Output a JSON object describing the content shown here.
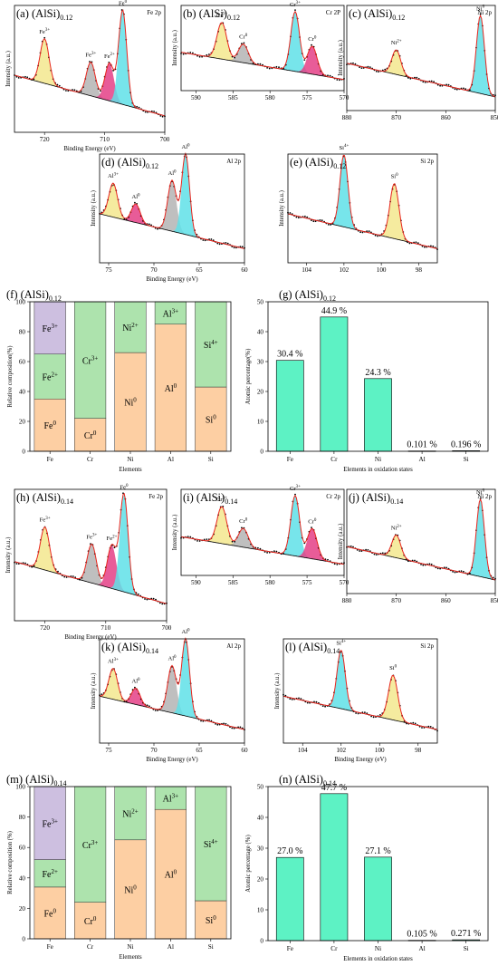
{
  "colors": {
    "yellow": "#f3e88e",
    "gray": "#b4b4b4",
    "magenta": "#e43f86",
    "cyan": "#5fe0e8",
    "purple": "#cdbfe0",
    "green": "#ade3ad",
    "orange": "#fdcfa3",
    "bar": "#5df2c4",
    "fit": "#e8261e"
  },
  "titles": {
    "a": {
      "pre": "(a) (AlSi)",
      "sub": "0.12"
    },
    "b": {
      "pre": "(b) (AlSi)",
      "sub": "0.12"
    },
    "c": {
      "pre": "(c) (AlSi)",
      "sub": "0.12"
    },
    "d": {
      "pre": "(d) (AlSi)",
      "sub": "0.12"
    },
    "e": {
      "pre": "(e) (AlSi)",
      "sub": "0.12"
    },
    "f": {
      "pre": "(f) (AlSi)",
      "sub": "0.12"
    },
    "g": {
      "pre": "(g) (AlSi)",
      "sub": "0.12"
    },
    "h": {
      "pre": "(h) (AlSi)",
      "sub": "0.14"
    },
    "i": {
      "pre": "(i) (AlSi)",
      "sub": "0.14"
    },
    "j": {
      "pre": "(j) (AlSi)",
      "sub": "0.14"
    },
    "k": {
      "pre": "(k) (AlSi)",
      "sub": "0.14"
    },
    "l": {
      "pre": "(l) (AlSi)",
      "sub": "0.14"
    },
    "m": {
      "pre": "(m) (AlSi)",
      "sub": "0.14"
    },
    "n": {
      "pre": "(n) (AlSi)",
      "sub": "0.14"
    }
  },
  "chart_data": [
    {
      "id": "a",
      "type": "line",
      "corner_tag": "Fe 2p",
      "xlabel": "Binding Energy (eV)",
      "ylabel": "Intensity (a.u.)",
      "xlim": [
        725,
        700
      ],
      "ticks": [
        "720",
        "710",
        "700"
      ],
      "peaks": [
        {
          "label": "Fe3+",
          "position": 720.0,
          "height": 0.45,
          "color": "yellow"
        },
        {
          "label": "Fe3+",
          "position": 712.3,
          "height": 0.34,
          "color": "gray"
        },
        {
          "label": "Fe2+",
          "position": 709.2,
          "height": 0.38,
          "color": "magenta"
        },
        {
          "label": "Fe0",
          "position": 707.0,
          "height": 0.95,
          "color": "cyan"
        }
      ]
    },
    {
      "id": "b",
      "type": "line",
      "corner_tag": "Cr 2P",
      "xlabel": "",
      "ylabel": "Intensity (a.u.)",
      "xlim": [
        592,
        570
      ],
      "ticks": [
        "590",
        "585",
        "580",
        "575",
        "570"
      ],
      "peaks": [
        {
          "label": "Cr3+",
          "position": 586.5,
          "height": 0.55,
          "color": "yellow"
        },
        {
          "label": "Cr0",
          "position": 583.6,
          "height": 0.28,
          "color": "gray"
        },
        {
          "label": "Cr3+",
          "position": 576.6,
          "height": 0.9,
          "color": "cyan"
        },
        {
          "label": "Cr0",
          "position": 574.3,
          "height": 0.42,
          "color": "magenta"
        }
      ]
    },
    {
      "id": "c",
      "type": "line",
      "corner_tag": "Ni 2p",
      "xlabel": "",
      "ylabel": "Intensity (a.u.)",
      "xlim": [
        880,
        850
      ],
      "ticks": [
        "880",
        "870",
        "860",
        "850"
      ],
      "peaks": [
        {
          "label": "Ni2+",
          "position": 870.0,
          "height": 0.3,
          "color": "yellow"
        },
        {
          "label": "Ni0",
          "position": 853.0,
          "height": 0.95,
          "color": "cyan"
        }
      ]
    },
    {
      "id": "d",
      "type": "line",
      "corner_tag": "Al 2p",
      "xlabel": "Binding Energy (eV)",
      "ylabel": "Intensity (a.u.)",
      "xlim": [
        76,
        60
      ],
      "ticks": [
        "75",
        "70",
        "65",
        "60"
      ],
      "peaks": [
        {
          "label": "Al3+",
          "position": 74.5,
          "height": 0.4,
          "color": "yellow"
        },
        {
          "label": "Al0",
          "position": 72.0,
          "height": 0.22,
          "color": "magenta"
        },
        {
          "label": "Al0",
          "position": 68.0,
          "height": 0.6,
          "color": "gray"
        },
        {
          "label": "Al0",
          "position": 66.5,
          "height": 0.95,
          "color": "cyan"
        }
      ]
    },
    {
      "id": "e",
      "type": "line",
      "corner_tag": "Si 2p",
      "xlabel": "",
      "ylabel": "Intensity (a.u.)",
      "xlim": [
        105,
        97
      ],
      "ticks": [
        "104",
        "102",
        "100",
        "98"
      ],
      "peaks": [
        {
          "label": "Si4+",
          "position": 102.0,
          "height": 0.85,
          "color": "cyan"
        },
        {
          "label": "Si0",
          "position": 99.3,
          "height": 0.65,
          "color": "yellow"
        }
      ]
    },
    {
      "id": "f",
      "type": "bar",
      "stacked": true,
      "xlabel": "Elements",
      "ylabel": "Relative composition(%)",
      "ylim": [
        0,
        100
      ],
      "yticks": [
        "0",
        "20",
        "40",
        "60",
        "80",
        "100"
      ],
      "categories": [
        "Fe",
        "Cr",
        "Ni",
        "Al",
        "Si"
      ],
      "segments": [
        [
          {
            "label": "Fe0",
            "value": 35,
            "color": "orange"
          },
          {
            "label": "Fe2+",
            "value": 30,
            "color": "green"
          },
          {
            "label": "Fe3+",
            "value": 35,
            "color": "purple"
          }
        ],
        [
          {
            "label": "Cr0",
            "value": 22,
            "color": "orange"
          },
          {
            "label": "Cr3+",
            "value": 78,
            "color": "green"
          }
        ],
        [
          {
            "label": "Ni0",
            "value": 66,
            "color": "orange"
          },
          {
            "label": "Ni2+",
            "value": 34,
            "color": "green"
          }
        ],
        [
          {
            "label": "Al0",
            "value": 85,
            "color": "orange"
          },
          {
            "label": "Al3+",
            "value": 15,
            "color": "green"
          }
        ],
        [
          {
            "label": "Si0",
            "value": 43,
            "color": "orange"
          },
          {
            "label": "Si4+",
            "value": 57,
            "color": "green"
          }
        ]
      ]
    },
    {
      "id": "g",
      "type": "bar",
      "xlabel": "Elements in oxidation states",
      "ylabel": "Atomic percentage(%)",
      "ylim": [
        0,
        50
      ],
      "yticks": [
        "0",
        "10",
        "20",
        "30",
        "40",
        "50"
      ],
      "categories": [
        "Fe",
        "Cr",
        "Ni",
        "Al",
        "Si"
      ],
      "values": [
        30.4,
        44.9,
        24.3,
        0.101,
        0.196
      ],
      "labels": [
        "30.4 %",
        "44.9 %",
        "24.3 %",
        "0.101 %",
        "0.196 %"
      ]
    },
    {
      "id": "h",
      "type": "line",
      "corner_tag": "Fe 2p",
      "xlabel": "Binding Energy (eV)",
      "ylabel": "Intensity (a.u.)",
      "xlim": [
        725,
        700
      ],
      "ticks": [
        "720",
        "710",
        "700"
      ],
      "peaks": [
        {
          "label": "Fe3+",
          "position": 720.0,
          "height": 0.42,
          "color": "yellow"
        },
        {
          "label": "Fe3+",
          "position": 712.3,
          "height": 0.38,
          "color": "gray"
        },
        {
          "label": "Fe2+",
          "position": 709.0,
          "height": 0.42,
          "color": "magenta"
        },
        {
          "label": "Fe0",
          "position": 707.0,
          "height": 0.95,
          "color": "cyan"
        }
      ]
    },
    {
      "id": "i",
      "type": "line",
      "corner_tag": "Cr 2p",
      "xlabel": "",
      "ylabel": "Intensity (a.u.)",
      "xlim": [
        592,
        570
      ],
      "ticks": [
        "590",
        "585",
        "580",
        "575",
        "570"
      ],
      "peaks": [
        {
          "label": "Cr3+",
          "position": 586.5,
          "height": 0.55,
          "color": "yellow"
        },
        {
          "label": "Cr0",
          "position": 583.6,
          "height": 0.28,
          "color": "gray"
        },
        {
          "label": "Cr3+",
          "position": 576.6,
          "height": 0.9,
          "color": "cyan"
        },
        {
          "label": "Cr0",
          "position": 574.3,
          "height": 0.45,
          "color": "magenta"
        }
      ]
    },
    {
      "id": "j",
      "type": "line",
      "corner_tag": "Ni 2p",
      "xlabel": "",
      "ylabel": "Intensity (a.u.)",
      "xlim": [
        880,
        850
      ],
      "ticks": [
        "880",
        "870",
        "860",
        "850"
      ],
      "peaks": [
        {
          "label": "Ni2+",
          "position": 870.0,
          "height": 0.28,
          "color": "yellow"
        },
        {
          "label": "Ni0",
          "position": 853.0,
          "height": 0.95,
          "color": "cyan"
        }
      ]
    },
    {
      "id": "k",
      "type": "line",
      "corner_tag": "Al 2p",
      "xlabel": "Binding Energy (eV)",
      "ylabel": "Intensity (a.u.)",
      "xlim": [
        76,
        60
      ],
      "ticks": [
        "75",
        "70",
        "65",
        "60"
      ],
      "peaks": [
        {
          "label": "Al3+",
          "position": 74.5,
          "height": 0.38,
          "color": "yellow"
        },
        {
          "label": "Al0",
          "position": 72.0,
          "height": 0.2,
          "color": "magenta"
        },
        {
          "label": "Al0",
          "position": 68.0,
          "height": 0.58,
          "color": "gray"
        },
        {
          "label": "Al0",
          "position": 66.5,
          "height": 0.95,
          "color": "cyan"
        }
      ]
    },
    {
      "id": "l",
      "type": "line",
      "corner_tag": "Si 2p",
      "xlabel": "Binding Energy (eV)",
      "ylabel": "Intensity (a.u.)",
      "xlim": [
        105,
        97
      ],
      "ticks": [
        "104",
        "102",
        "100",
        "98"
      ],
      "peaks": [
        {
          "label": "Si4+",
          "position": 102.0,
          "height": 0.72,
          "color": "cyan"
        },
        {
          "label": "Si0",
          "position": 99.3,
          "height": 0.55,
          "color": "yellow"
        }
      ]
    },
    {
      "id": "m",
      "type": "bar",
      "stacked": true,
      "xlabel": "Elements",
      "ylabel": "Relative composition (%)",
      "ylim": [
        0,
        100
      ],
      "yticks": [
        "0",
        "20",
        "40",
        "60",
        "80",
        "100"
      ],
      "categories": [
        "Fe",
        "Cr",
        "Ni",
        "Al",
        "Si"
      ],
      "segments": [
        [
          {
            "label": "Fe0",
            "value": 34,
            "color": "orange"
          },
          {
            "label": "Fe2+",
            "value": 18,
            "color": "green"
          },
          {
            "label": "Fe3+",
            "value": 48,
            "color": "purple"
          }
        ],
        [
          {
            "label": "Cr0",
            "value": 24,
            "color": "orange"
          },
          {
            "label": "Cr3+",
            "value": 76,
            "color": "green"
          }
        ],
        [
          {
            "label": "Ni0",
            "value": 65,
            "color": "orange"
          },
          {
            "label": "Ni2+",
            "value": 35,
            "color": "green"
          }
        ],
        [
          {
            "label": "Al0",
            "value": 85,
            "color": "orange"
          },
          {
            "label": "Al3+",
            "value": 15,
            "color": "green"
          }
        ],
        [
          {
            "label": "Si0",
            "value": 25,
            "color": "orange"
          },
          {
            "label": "Si4+",
            "value": 75,
            "color": "green"
          }
        ]
      ]
    },
    {
      "id": "n",
      "type": "bar",
      "xlabel": "Elements in oxidation states",
      "ylabel": "Atomic percentage (%)",
      "ylim": [
        0,
        50
      ],
      "yticks": [
        "0",
        "10",
        "20",
        "30",
        "40",
        "50"
      ],
      "categories": [
        "Fe",
        "Cr",
        "Ni",
        "Al",
        "Si"
      ],
      "values": [
        27.0,
        47.7,
        27.1,
        0.105,
        0.271
      ],
      "labels": [
        "27.0 %",
        "47.7 %",
        "27.1 %",
        "0.105 %",
        "0.271 %"
      ]
    }
  ]
}
